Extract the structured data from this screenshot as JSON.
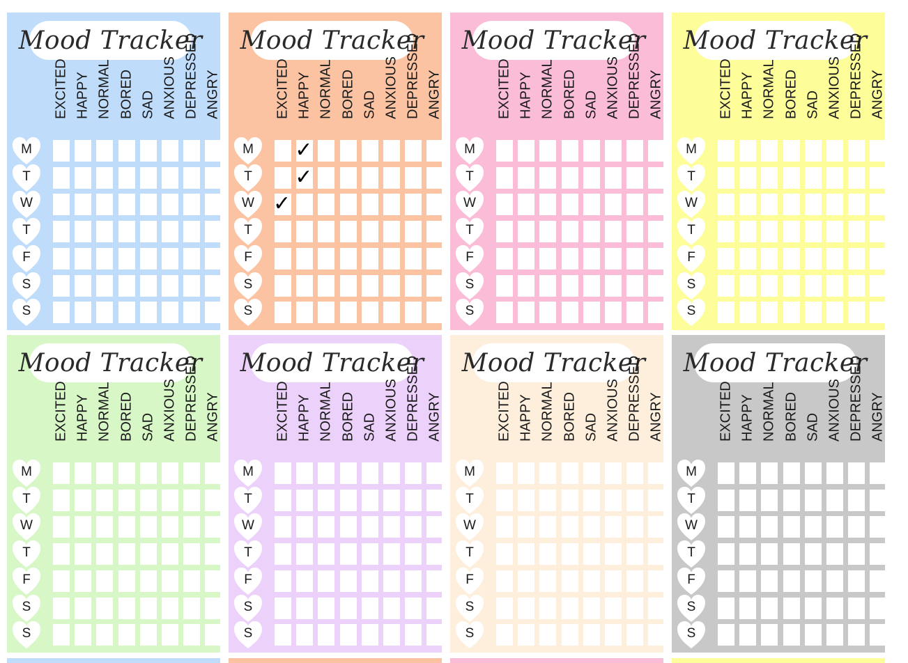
{
  "title": "Mood Tracker",
  "moods": [
    "EXCITED",
    "HAPPY",
    "NORMAL",
    "BORED",
    "SAD",
    "ANXIOUS",
    "DEPRESSED",
    "ANGRY"
  ],
  "days": [
    "M",
    "T",
    "W",
    "T",
    "F",
    "S",
    "S"
  ],
  "check_mark": "✓",
  "cards": [
    {
      "color": "#bfdcfb",
      "checks": []
    },
    {
      "color": "#fcc3a3",
      "checks": [
        [
          0,
          1
        ],
        [
          1,
          1
        ],
        [
          2,
          0
        ]
      ]
    },
    {
      "color": "#fbbcd7",
      "checks": []
    },
    {
      "color": "#fdfd9a",
      "checks": []
    },
    {
      "color": "#d8f7c6",
      "checks": []
    },
    {
      "color": "#ecd1fb",
      "checks": []
    },
    {
      "color": "#fdefdc",
      "checks": []
    },
    {
      "color": "#c8c8c8",
      "checks": []
    }
  ]
}
